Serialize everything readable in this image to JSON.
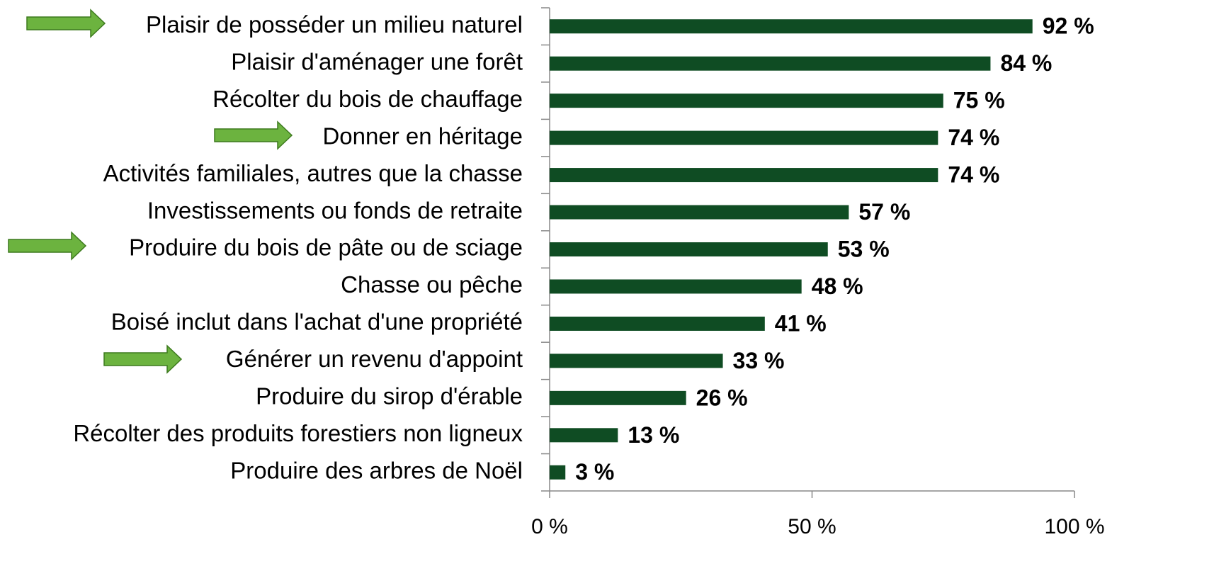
{
  "chart_data": {
    "type": "bar",
    "orientation": "horizontal",
    "categories": [
      "Plaisir de posséder un milieu naturel",
      "Plaisir d'aménager une forêt",
      "Récolter du bois de chauffage",
      "Donner en héritage",
      "Activités familiales, autres que la chasse",
      "Investissements ou fonds de retraite",
      "Produire du bois de pâte ou de sciage",
      "Chasse ou pêche",
      "Boisé inclut dans l'achat d'une propriété",
      "Générer un revenu d'appoint",
      "Produire du sirop d'érable",
      "Récolter des produits forestiers non ligneux",
      "Produire des arbres de Noël"
    ],
    "values": [
      92,
      84,
      75,
      74,
      74,
      57,
      53,
      48,
      41,
      33,
      26,
      13,
      3
    ],
    "value_labels": [
      "92 %",
      "84 %",
      "75 %",
      "74 %",
      "74 %",
      "57 %",
      "53 %",
      "48 %",
      "41 %",
      "33 %",
      "26 %",
      "13 %",
      "3 %"
    ],
    "color": "#0f4c23",
    "xlim": [
      0,
      100
    ],
    "xticks": [
      {
        "value": 0,
        "label": "0 %"
      },
      {
        "value": 50,
        "label": "50 %"
      },
      {
        "value": 100,
        "label": "100 %"
      }
    ],
    "grid": false
  }
}
